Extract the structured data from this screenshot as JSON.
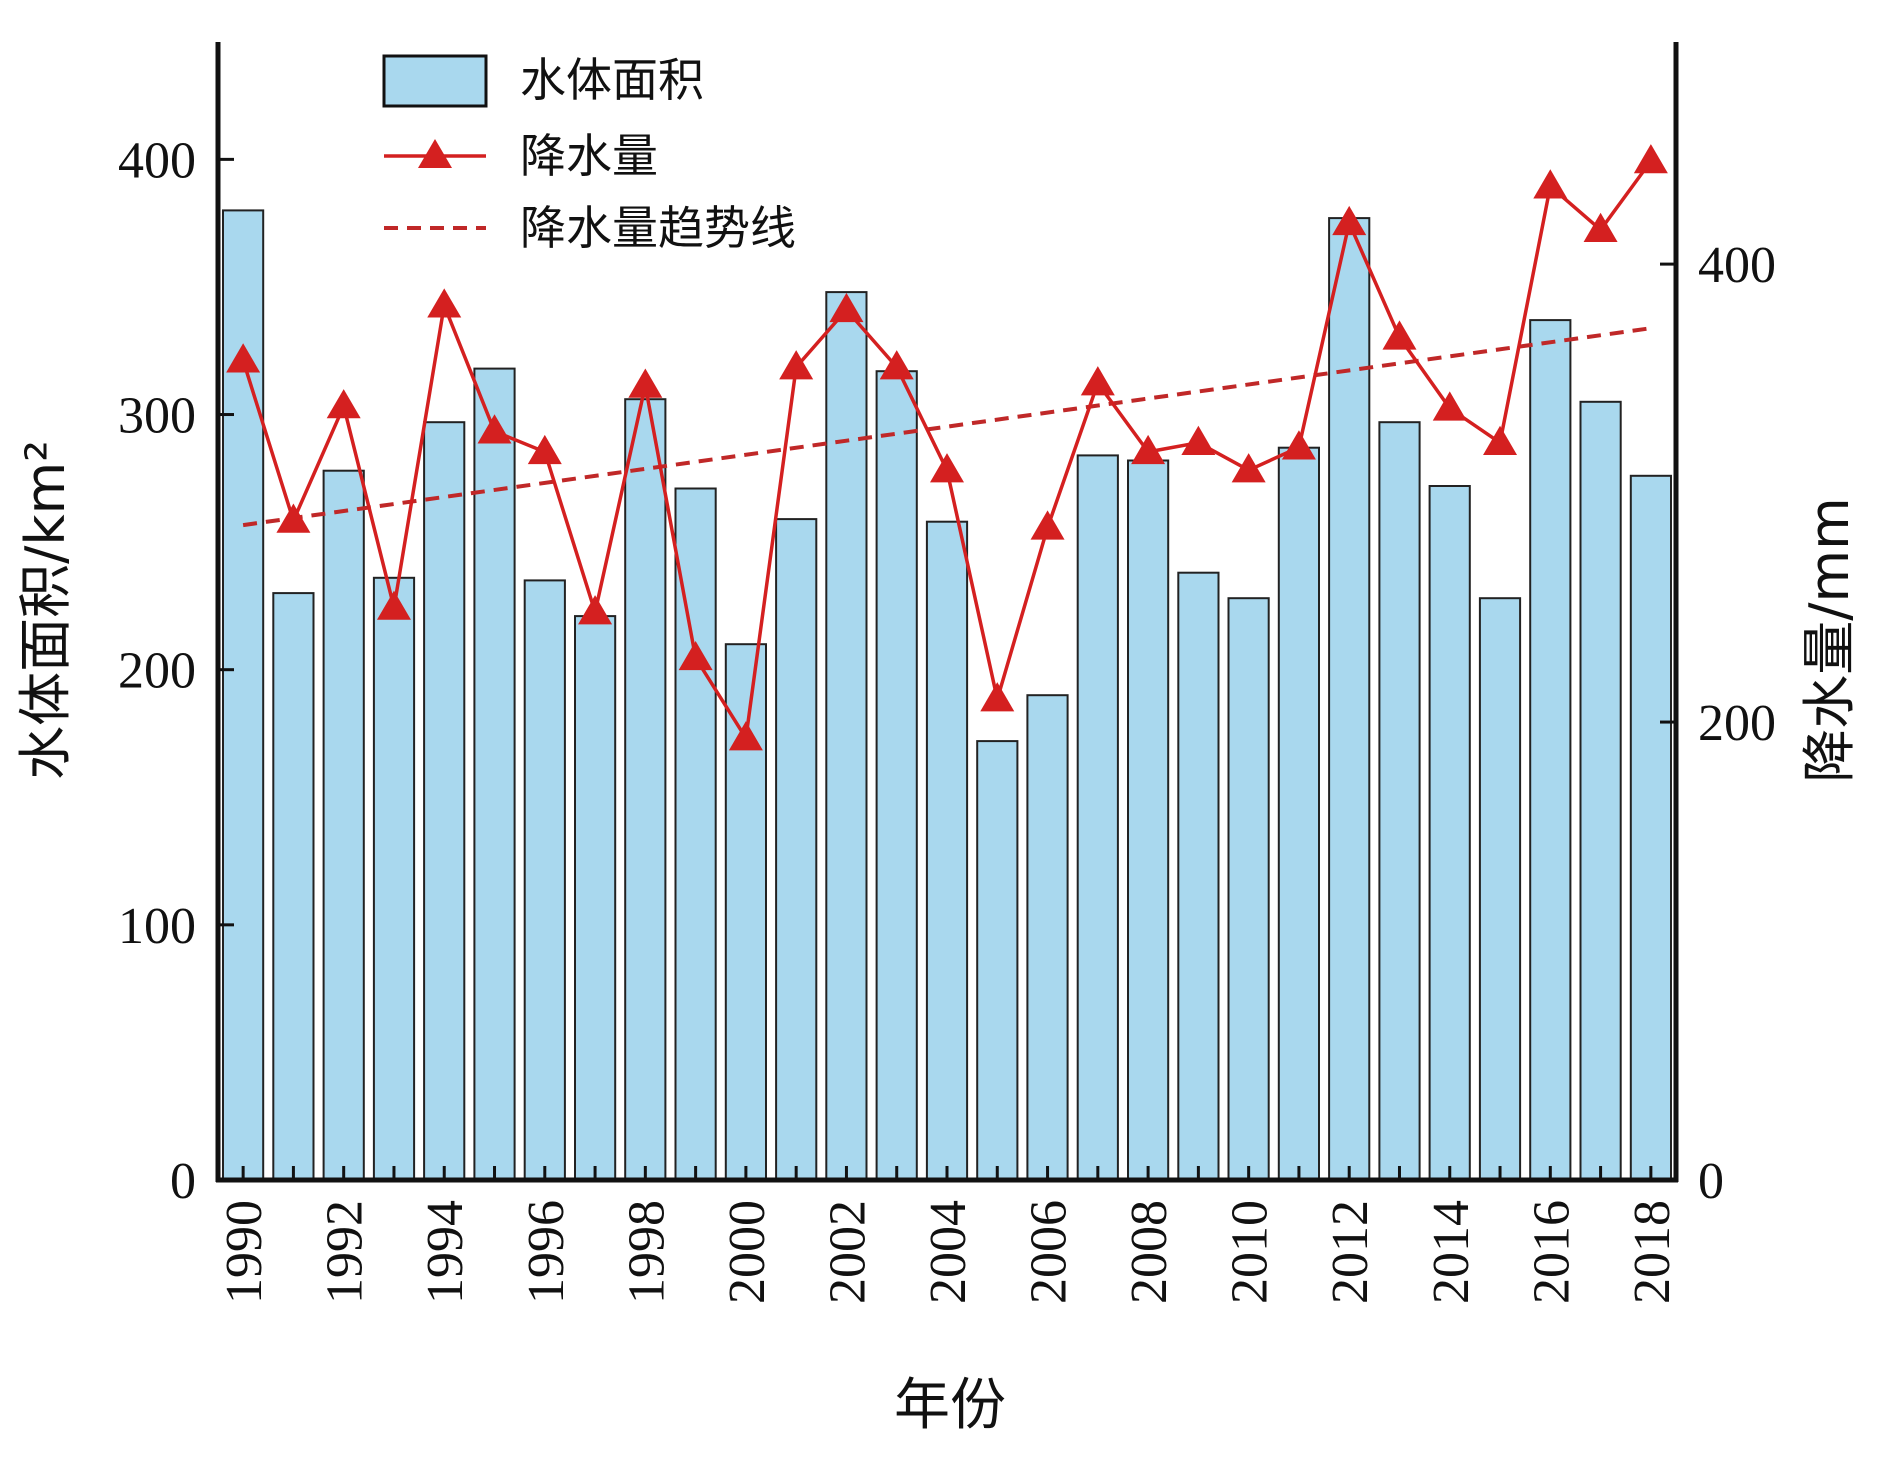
{
  "chart_data": {
    "type": "bar",
    "xlabel": "年份",
    "categories": [
      "1990",
      "1991",
      "1992",
      "1993",
      "1994",
      "1995",
      "1996",
      "1997",
      "1998",
      "1999",
      "2000",
      "2001",
      "2002",
      "2003",
      "2004",
      "2005",
      "2006",
      "2007",
      "2008",
      "2009",
      "2010",
      "2011",
      "2012",
      "2013",
      "2014",
      "2015",
      "2016",
      "2017",
      "2018"
    ],
    "x_tick_labels": [
      "1990",
      "1992",
      "1994",
      "1996",
      "1998",
      "2000",
      "2002",
      "2004",
      "2006",
      "2008",
      "2010",
      "2012",
      "2014",
      "2016",
      "2018"
    ],
    "left_axis": {
      "label": "水体面积/km²",
      "ylim": [
        0,
        446
      ],
      "ticks": [
        0,
        100,
        200,
        300,
        400
      ]
    },
    "right_axis": {
      "label": "降水量/mm",
      "ylim": [
        0,
        497
      ],
      "ticks": [
        0,
        200,
        400
      ]
    },
    "series": [
      {
        "name": "水体面积",
        "kind": "bar",
        "axis": "left",
        "color": "#a9d8ee",
        "edge_color": "#222222",
        "values": [
          380,
          230,
          278,
          236,
          297,
          318,
          235,
          221,
          306,
          271,
          210,
          259,
          348,
          317,
          258,
          172,
          190,
          284,
          282,
          238,
          228,
          287,
          377,
          297,
          272,
          228,
          337,
          305,
          276
        ]
      },
      {
        "name": "降水量",
        "kind": "line",
        "axis": "right",
        "color": "#d42020",
        "marker": "triangle",
        "values": [
          358,
          288,
          338,
          250,
          382,
          327,
          318,
          248,
          347,
          228,
          193,
          355,
          380,
          355,
          310,
          210,
          285,
          348,
          318,
          322,
          310,
          320,
          418,
          368,
          337,
          322,
          434,
          415,
          445
        ]
      },
      {
        "name": "降水量趋势线",
        "kind": "line",
        "axis": "right",
        "style": "dashed",
        "color": "#c02828",
        "x": [
          "1990",
          "2018"
        ],
        "values": [
          286,
          372
        ]
      }
    ],
    "legend_position": "top-left",
    "grid": false
  }
}
